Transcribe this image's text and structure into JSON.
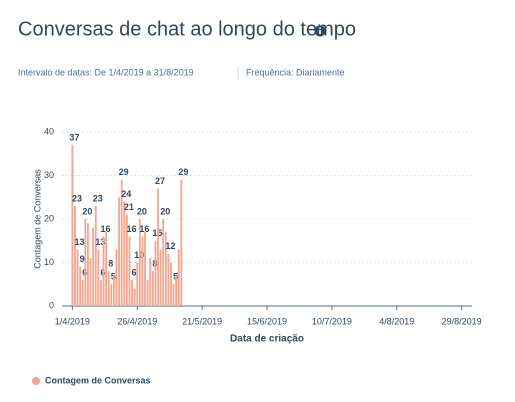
{
  "chart_data": {
    "type": "bar",
    "title": "Conversas de chat ao longo do tempo",
    "date_range": "Intervalo de datas: De 1/4/2019 a 31/8/2019",
    "frequency": "Frequência: Diariamente",
    "x_label": "Data de criação",
    "y_label": "Contagem de Conversas",
    "x": [
      "2019-04-01",
      "2019-04-02",
      "2019-04-03",
      "2019-04-04",
      "2019-04-05",
      "2019-04-06",
      "2019-04-07",
      "2019-04-08",
      "2019-04-09",
      "2019-04-10",
      "2019-04-11",
      "2019-04-12",
      "2019-04-13",
      "2019-04-14",
      "2019-04-15",
      "2019-04-16",
      "2019-04-17",
      "2019-04-18",
      "2019-04-19",
      "2019-04-20",
      "2019-04-21",
      "2019-04-22",
      "2019-04-23",
      "2019-04-24",
      "2019-04-25",
      "2019-04-26",
      "2019-04-27",
      "2019-04-28",
      "2019-04-29",
      "2019-04-30",
      "2019-05-01",
      "2019-05-02",
      "2019-05-03",
      "2019-05-04",
      "2019-05-05",
      "2019-05-06",
      "2019-05-07",
      "2019-05-08",
      "2019-05-09",
      "2019-05-10",
      "2019-05-11",
      "2019-05-12",
      "2019-05-13"
    ],
    "series": [
      {
        "name": "Contagem de Conversas",
        "color": "#f5a48e",
        "values": [
          37,
          23,
          13,
          9,
          6,
          20,
          19,
          11,
          18,
          23,
          13,
          6,
          16,
          17,
          8,
          5,
          7,
          13,
          25,
          29,
          24,
          21,
          16,
          6,
          4,
          10,
          20,
          16,
          17,
          6,
          11,
          8,
          15,
          27,
          13,
          20,
          17,
          12,
          10,
          5,
          7,
          13,
          29
        ],
        "value_labels": [
          "37",
          "23",
          "13",
          "9",
          "6",
          "20",
          null,
          null,
          null,
          "23",
          "13",
          "6",
          "16",
          null,
          "8",
          "5",
          null,
          null,
          null,
          "29",
          "24",
          "21",
          "16",
          "6",
          null,
          "10",
          "20",
          "16",
          null,
          null,
          null,
          "8",
          "15",
          "27",
          null,
          "20",
          null,
          "12",
          null,
          "5",
          null,
          null,
          "29"
        ]
      }
    ],
    "xlim": [
      "2019-03-28",
      "2019-09-02"
    ],
    "xticks": [
      {
        "value": "2019-04-01",
        "label": "1/4/2019"
      },
      {
        "value": "2019-04-26",
        "label": "26/4/2019"
      },
      {
        "value": "2019-05-21",
        "label": "21/5/2019"
      },
      {
        "value": "2019-06-15",
        "label": "15/6/2019"
      },
      {
        "value": "2019-07-10",
        "label": "10/7/2019"
      },
      {
        "value": "2019-08-04",
        "label": "4/8/2019"
      },
      {
        "value": "2019-08-29",
        "label": "29/8/2019"
      }
    ],
    "ylim": [
      0,
      40
    ],
    "yticks": [
      0,
      10,
      20,
      30,
      40
    ],
    "grid": true
  }
}
